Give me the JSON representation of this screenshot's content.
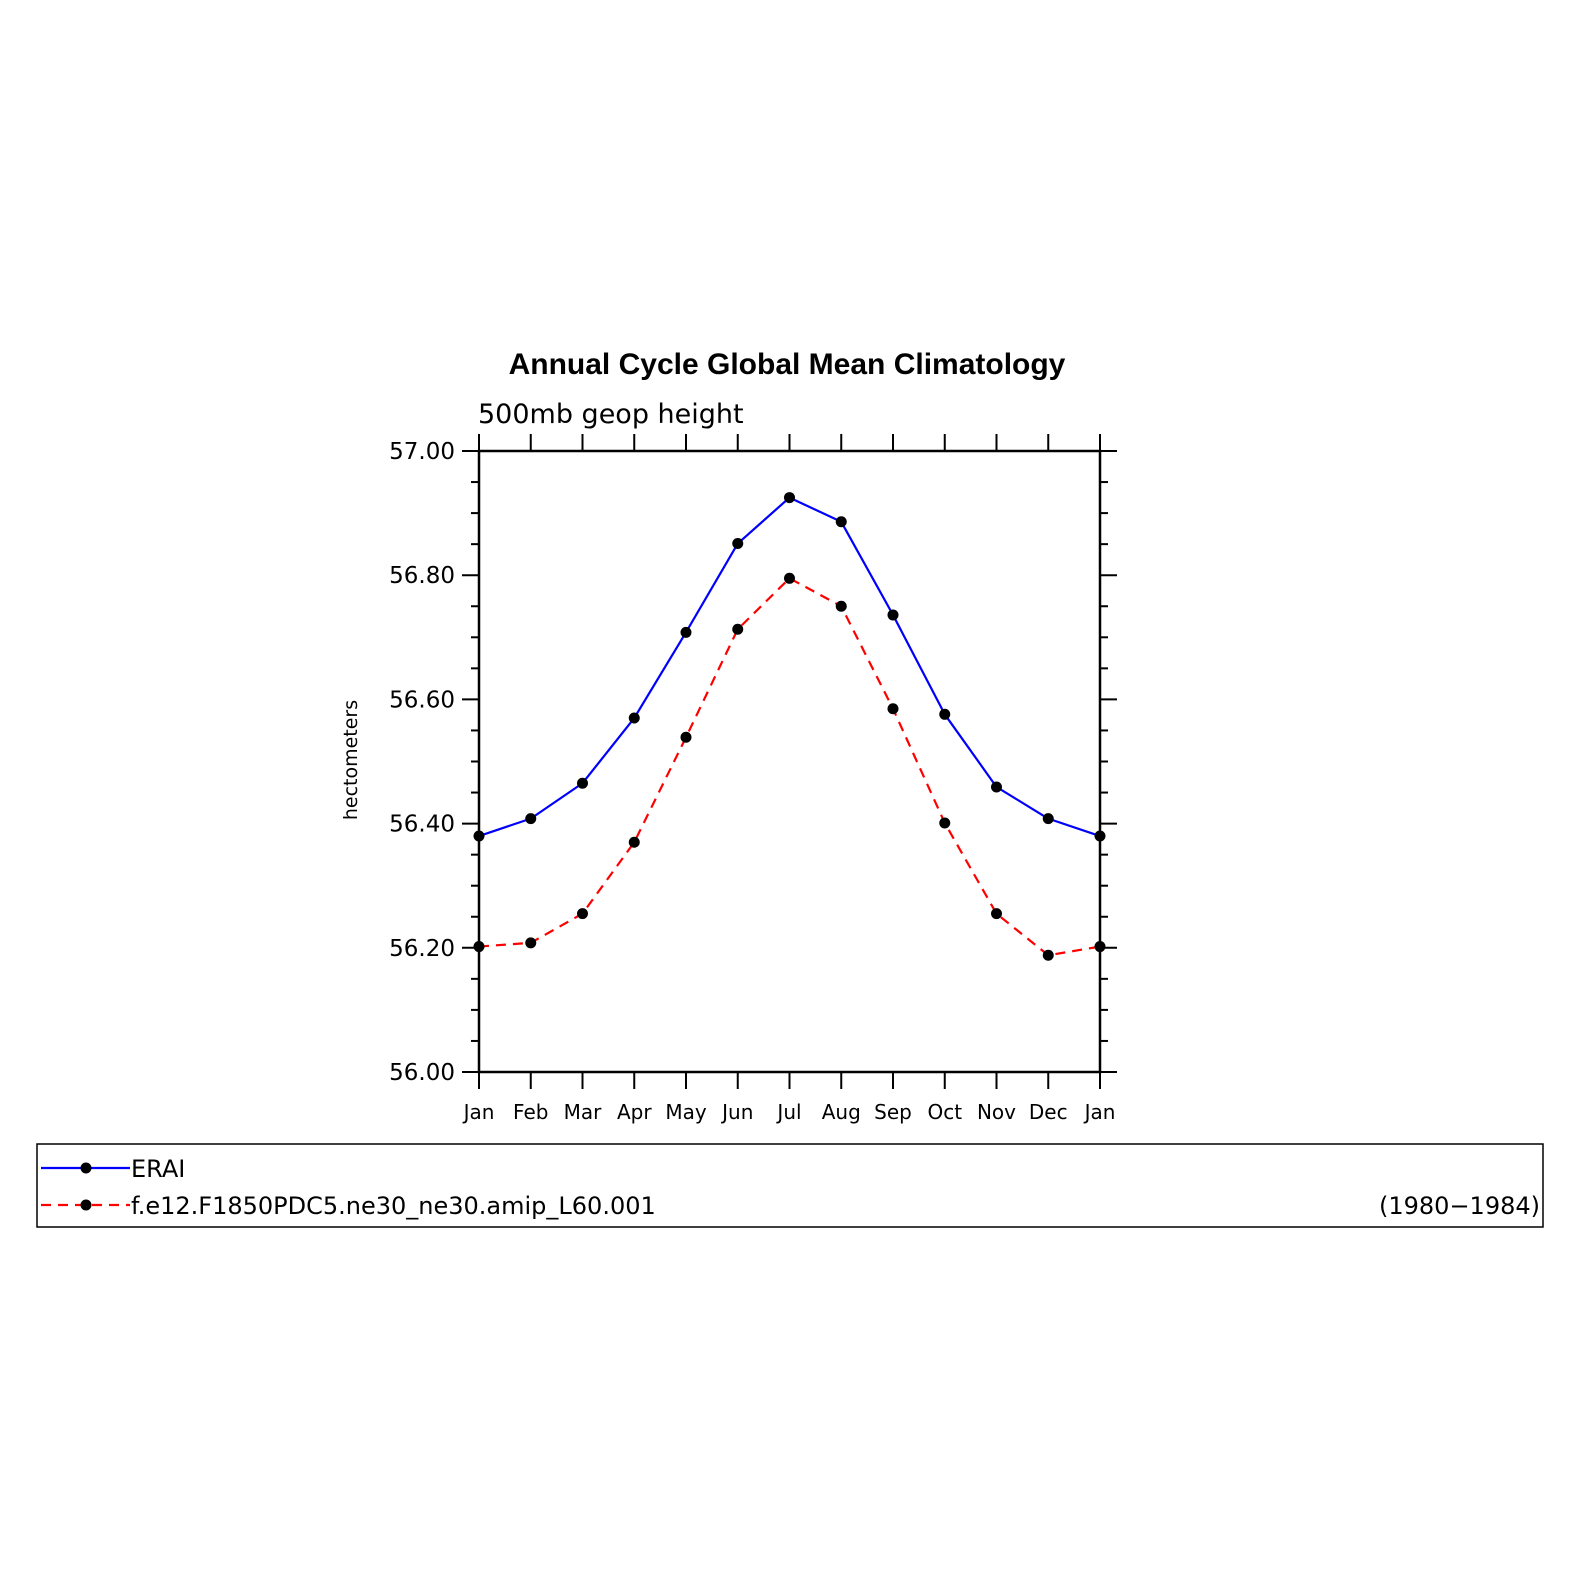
{
  "chart_data": {
    "type": "line",
    "title": "Annual Cycle Global Mean Climatology",
    "subtitle": "500mb geop height",
    "ylabel": "hectometers",
    "xlabel": "",
    "categories": [
      "Jan",
      "Feb",
      "Mar",
      "Apr",
      "May",
      "Jun",
      "Jul",
      "Aug",
      "Sep",
      "Oct",
      "Nov",
      "Dec",
      "Jan"
    ],
    "ylim": [
      56.0,
      57.0
    ],
    "yticks": [
      "56.00",
      "56.20",
      "56.40",
      "56.60",
      "56.80",
      "57.00"
    ],
    "yticks_values": [
      56.0,
      56.2,
      56.4,
      56.6,
      56.8,
      57.0
    ],
    "grid": false,
    "legend_placement": "bottom",
    "legend_note": "(1980−1984)",
    "series": [
      {
        "name": "ERAI",
        "color": "#0000ff",
        "style": "solid",
        "marker": "dot",
        "values": [
          56.38,
          56.408,
          56.465,
          56.57,
          56.708,
          56.851,
          56.925,
          56.886,
          56.736,
          56.576,
          56.459,
          56.408,
          56.38
        ]
      },
      {
        "name": "f.e12.F1850PDC5.ne30_ne30.amip_L60.001",
        "color": "#ff0000",
        "style": "dashed",
        "marker": "dot",
        "values": [
          56.202,
          56.208,
          56.255,
          56.37,
          56.539,
          56.713,
          56.795,
          56.75,
          56.585,
          56.401,
          56.255,
          56.188,
          56.202
        ]
      }
    ]
  }
}
